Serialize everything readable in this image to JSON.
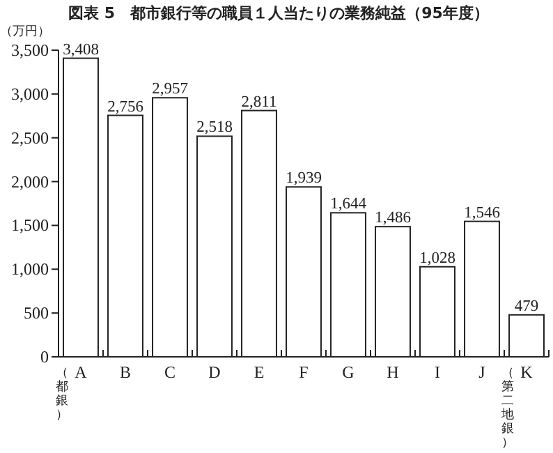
{
  "chart_data": {
    "type": "bar",
    "title": "図表 5　都市銀行等の職員１人当たりの業務純益（95年度）",
    "ylabel": "（万円）",
    "categories": [
      "A",
      "B",
      "C",
      "D",
      "E",
      "F",
      "G",
      "H",
      "I",
      "J",
      "K"
    ],
    "values": [
      3408,
      2756,
      2957,
      2518,
      2811,
      1939,
      1644,
      1486,
      1028,
      1546,
      479
    ],
    "color": "#ffffff",
    "value_labels": [
      "3,408",
      "2,756",
      "2,957",
      "2,518",
      "2,811",
      "1,939",
      "1,644",
      "1,486",
      "1,028",
      "1,546",
      "479"
    ],
    "grid": false,
    "ylim": [
      0,
      3500
    ],
    "yticks": [
      {
        "value": 0,
        "label": "0"
      },
      {
        "value": 500,
        "label": "500"
      },
      {
        "value": 1000,
        "label": "1,000"
      },
      {
        "value": 1500,
        "label": "1,500"
      },
      {
        "value": 2000,
        "label": "2,000"
      },
      {
        "value": 2500,
        "label": "2,500"
      },
      {
        "value": 3000,
        "label": "3,000"
      },
      {
        "value": 3500,
        "label": "3,500"
      }
    ],
    "annotations": [
      "（都銀）",
      "（第二地銀）"
    ]
  }
}
